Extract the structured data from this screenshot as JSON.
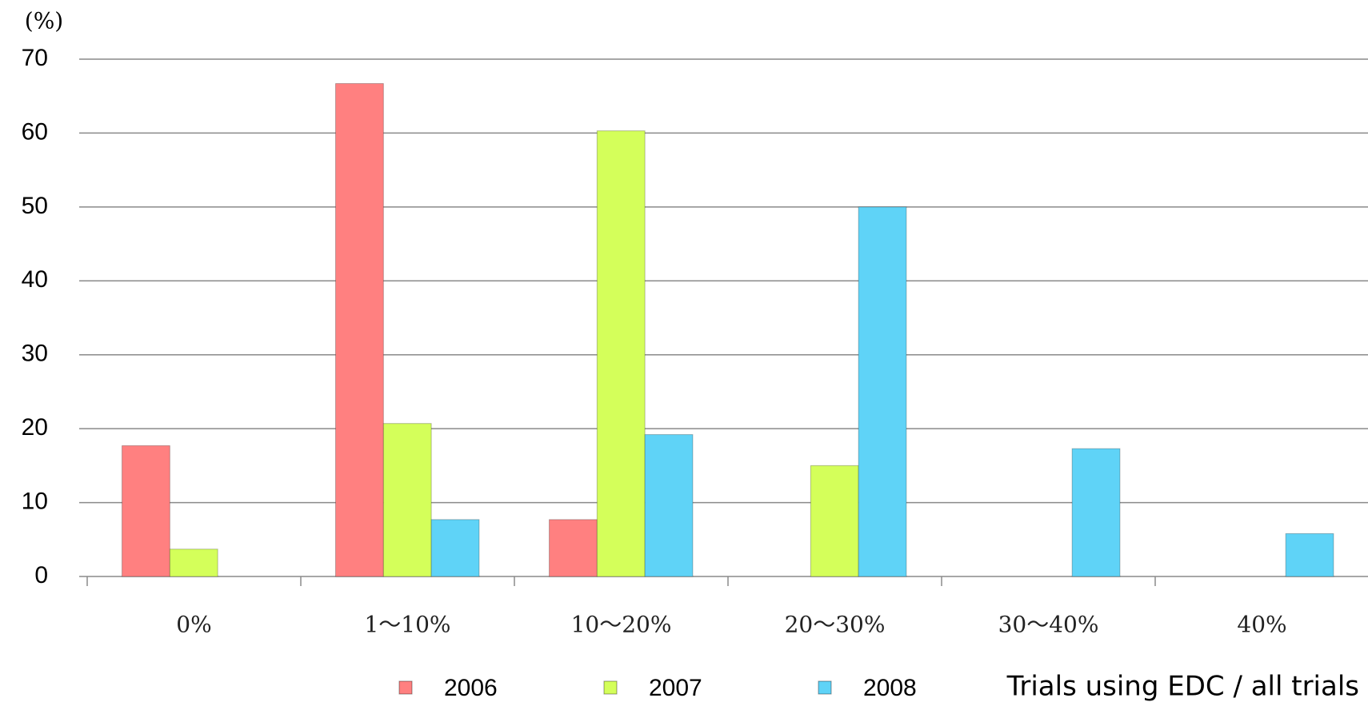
{
  "chart_data": {
    "type": "bar",
    "y_label": "(%)",
    "annotation": "Trials using EDC / all trials",
    "categories": [
      "0%",
      "1～10%",
      "10～20%",
      "20～30%",
      "30～40%",
      "40%"
    ],
    "series": [
      {
        "name": "2006",
        "color": "#ff8080",
        "values": [
          17.7,
          66.7,
          7.7,
          0,
          0,
          0
        ]
      },
      {
        "name": "2007",
        "color": "#d4ff5a",
        "values": [
          3.7,
          20.7,
          60.3,
          15,
          0,
          0
        ]
      },
      {
        "name": "2008",
        "color": "#5fd3f7",
        "values": [
          0,
          7.7,
          19.2,
          50,
          17.3,
          5.8
        ]
      }
    ],
    "ylim": [
      0,
      70
    ],
    "yticks": [
      0,
      10,
      20,
      30,
      40,
      50,
      60,
      70
    ],
    "grid": true
  }
}
